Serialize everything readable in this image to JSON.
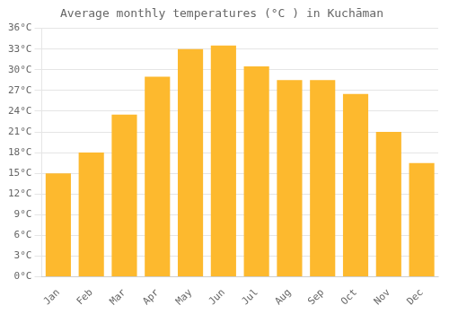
{
  "chart_data": {
    "type": "bar",
    "title": "Average monthly temperatures (°C ) in Kuchāman",
    "categories": [
      "Jan",
      "Feb",
      "Mar",
      "Apr",
      "May",
      "Jun",
      "Jul",
      "Aug",
      "Sep",
      "Oct",
      "Nov",
      "Dec"
    ],
    "values": [
      15.0,
      18.0,
      23.5,
      29.0,
      33.0,
      33.5,
      30.5,
      28.5,
      28.5,
      26.5,
      21.0,
      16.5
    ],
    "color": "#FDB92E",
    "ylim": [
      0,
      36
    ],
    "yticks": [
      {
        "value": 0,
        "label": "0°C"
      },
      {
        "value": 3,
        "label": "3°C"
      },
      {
        "value": 6,
        "label": "6°C"
      },
      {
        "value": 9,
        "label": "9°C"
      },
      {
        "value": 12,
        "label": "12°C"
      },
      {
        "value": 15,
        "label": "15°C"
      },
      {
        "value": 18,
        "label": "18°C"
      },
      {
        "value": 21,
        "label": "21°C"
      },
      {
        "value": 24,
        "label": "24°C"
      },
      {
        "value": 27,
        "label": "27°C"
      },
      {
        "value": 30,
        "label": "30°C"
      },
      {
        "value": 33,
        "label": "33°C"
      },
      {
        "value": 36,
        "label": "36°C"
      }
    ],
    "grid": true
  }
}
